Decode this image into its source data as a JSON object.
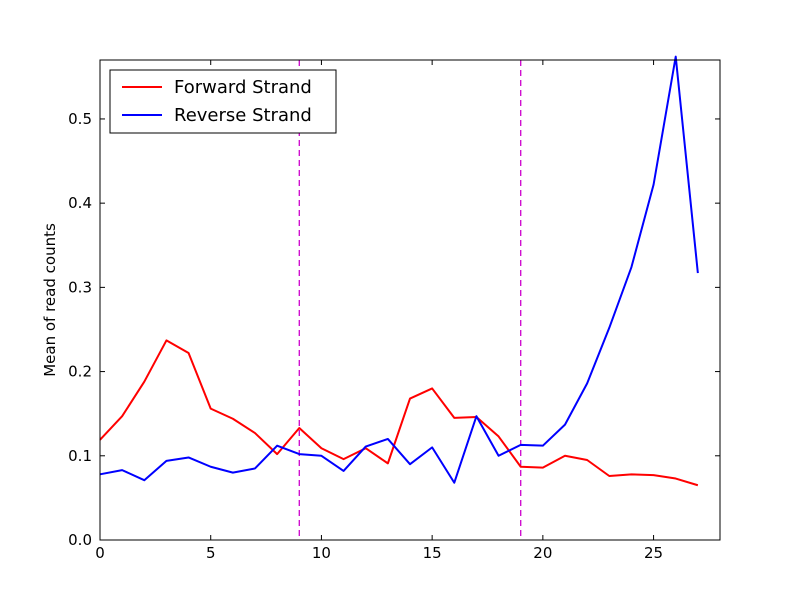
{
  "chart_data": {
    "type": "line",
    "title": "",
    "xlabel": "",
    "ylabel": "Mean of read counts",
    "xlim": [
      0,
      28
    ],
    "ylim": [
      0.0,
      0.57
    ],
    "x_ticks": [
      0,
      5,
      10,
      15,
      20,
      25
    ],
    "y_ticks": [
      0.0,
      0.1,
      0.2,
      0.3,
      0.4,
      0.5
    ],
    "x_tick_labels": [
      "0",
      "5",
      "10",
      "15",
      "20",
      "25"
    ],
    "y_tick_labels": [
      "0.0",
      "0.1",
      "0.2",
      "0.3",
      "0.4",
      "0.5"
    ],
    "grid": false,
    "legend_position": "upper-left",
    "vertical_lines": [
      {
        "x": 9,
        "color": "#cc00cc",
        "style": "dashed"
      },
      {
        "x": 19,
        "color": "#cc00cc",
        "style": "dashed"
      }
    ],
    "x": [
      0,
      1,
      2,
      3,
      4,
      5,
      6,
      7,
      8,
      9,
      10,
      11,
      12,
      13,
      14,
      15,
      16,
      17,
      18,
      19,
      20,
      21,
      22,
      23,
      24,
      25,
      26,
      27
    ],
    "series": [
      {
        "name": "Forward Strand",
        "color": "#ff0000",
        "values": [
          0.119,
          0.147,
          0.188,
          0.237,
          0.222,
          0.156,
          0.144,
          0.127,
          0.102,
          0.133,
          0.109,
          0.096,
          0.109,
          0.091,
          0.168,
          0.18,
          0.145,
          0.146,
          0.123,
          0.087,
          0.086,
          0.1,
          0.095,
          0.076,
          0.078,
          0.077,
          0.073,
          0.065
        ]
      },
      {
        "name": "Reverse Strand",
        "color": "#0000ff",
        "values": [
          0.078,
          0.083,
          0.071,
          0.094,
          0.098,
          0.087,
          0.08,
          0.085,
          0.112,
          0.102,
          0.1,
          0.082,
          0.111,
          0.12,
          0.09,
          0.11,
          0.068,
          0.147,
          0.1,
          0.113,
          0.112,
          0.137,
          0.186,
          0.252,
          0.324,
          0.422,
          0.574,
          0.317
        ]
      }
    ]
  }
}
